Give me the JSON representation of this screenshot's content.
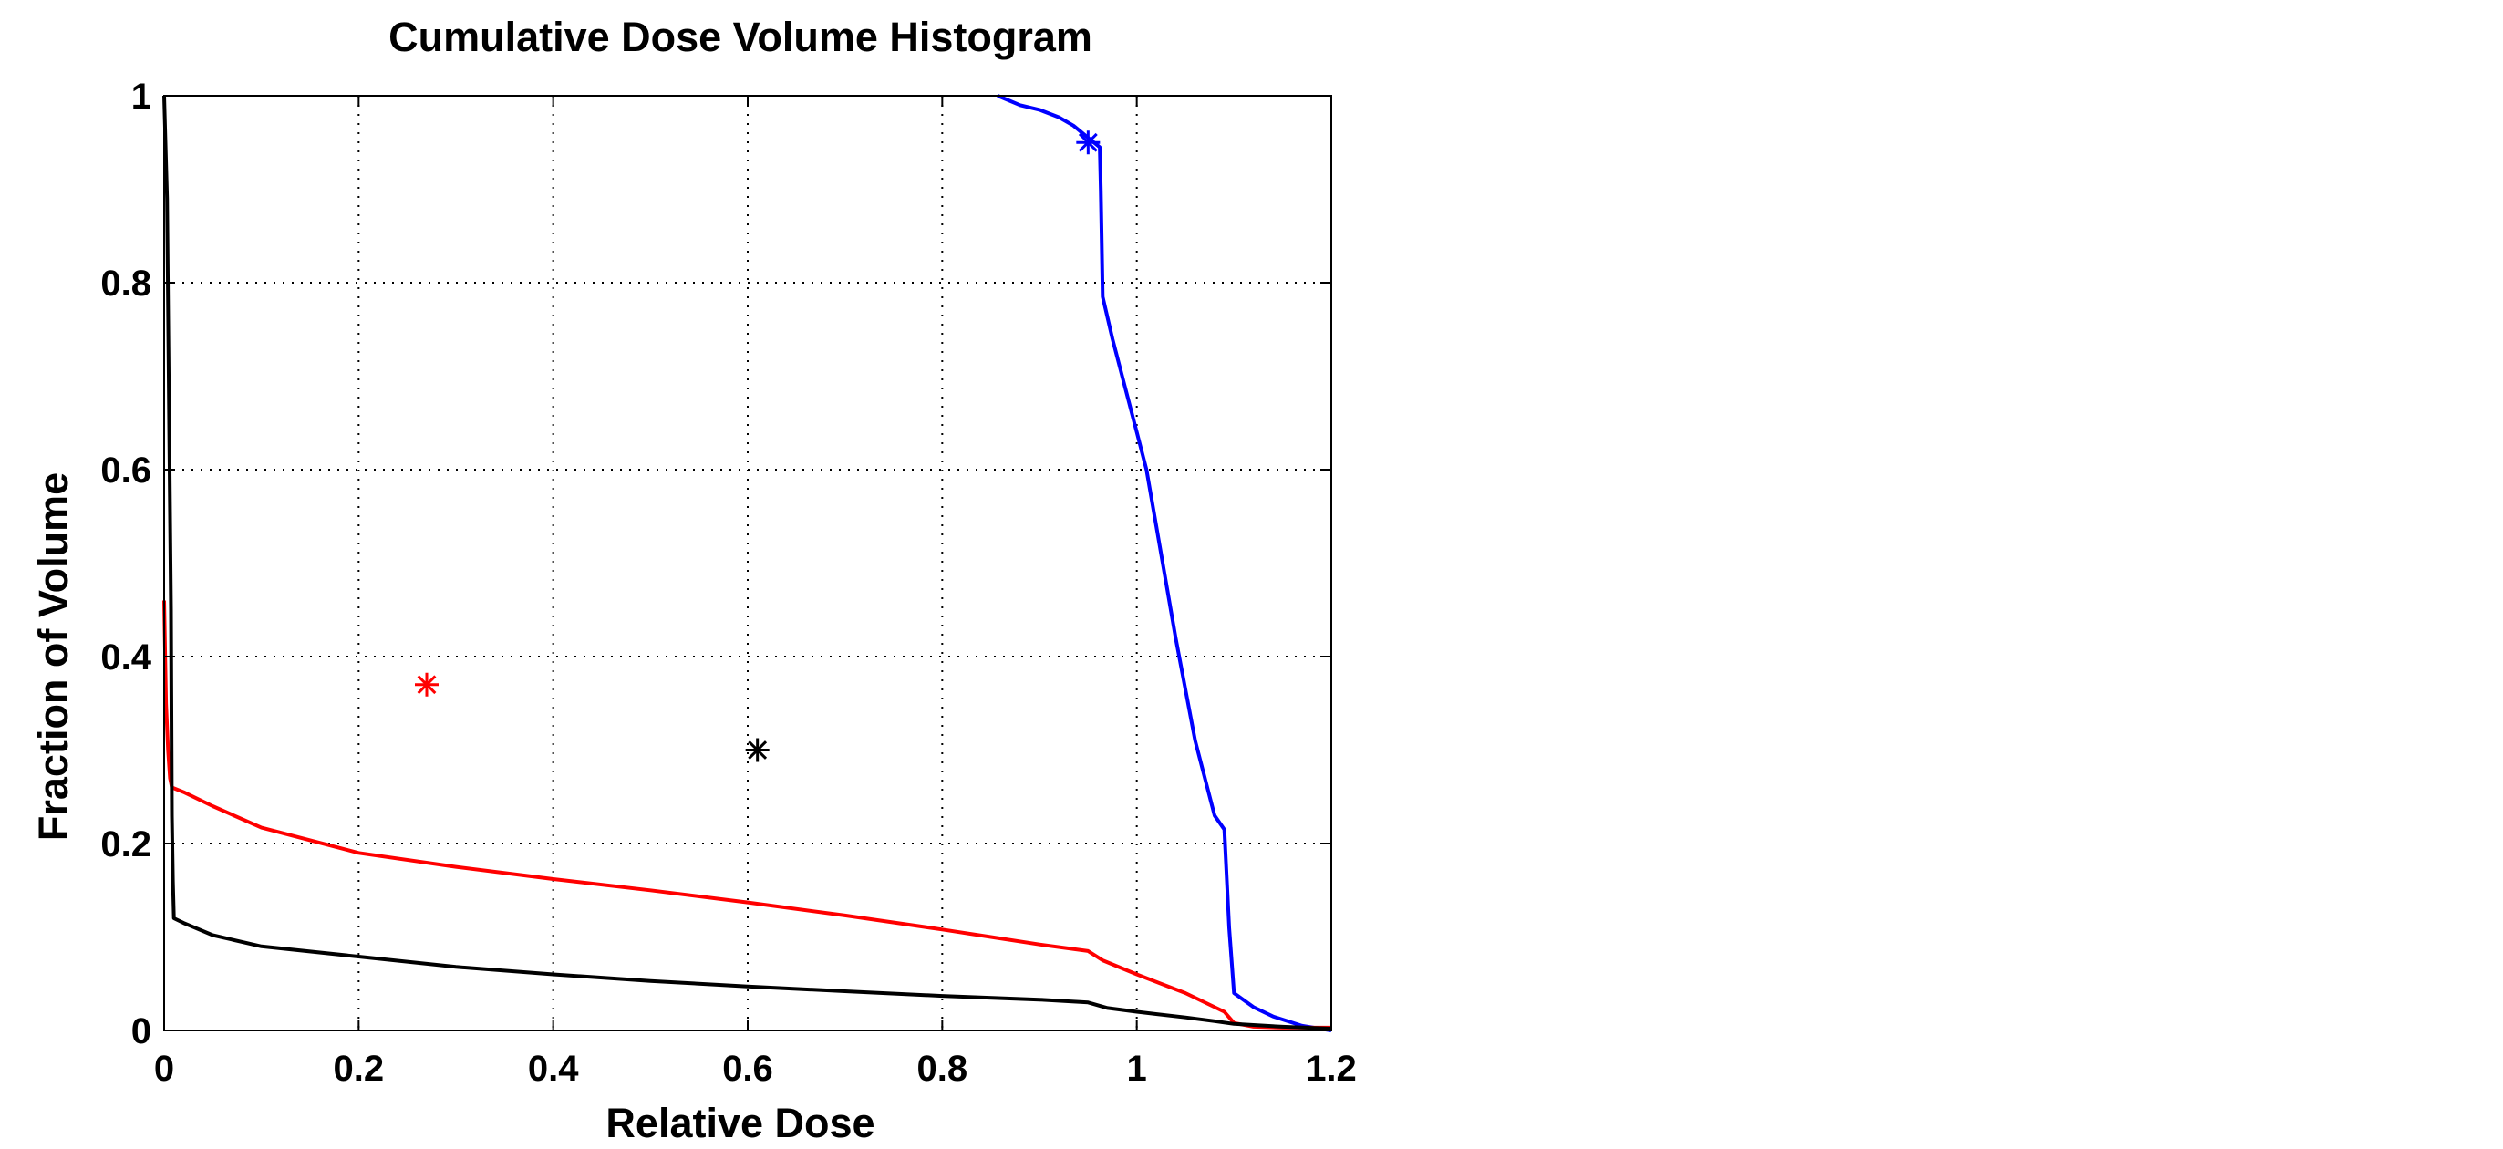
{
  "chart_data": {
    "type": "line",
    "title": "Cumulative Dose Volume Histogram",
    "xlabel": "Relative Dose",
    "ylabel": "Fraction of Volume",
    "xlim": [
      0,
      1.2
    ],
    "ylim": [
      0,
      1
    ],
    "x_ticks": [
      0,
      0.2,
      0.4,
      0.6,
      0.8,
      1,
      1.2
    ],
    "y_ticks": [
      0,
      0.2,
      0.4,
      0.6,
      0.8,
      1
    ],
    "x_tick_labels": [
      "0",
      "0.2",
      "0.4",
      "0.6",
      "0.8",
      "1",
      "1.2"
    ],
    "y_tick_labels": [
      "0",
      "0.2",
      "0.4",
      "0.6",
      "0.8",
      "1"
    ],
    "grid": true,
    "grid_style": "dotted",
    "legend": "none",
    "series": [
      {
        "color": "#0000ff",
        "x": [
          0.857,
          0.88,
          0.9,
          0.92,
          0.935,
          0.95,
          0.962,
          0.963,
          0.965,
          0.975,
          0.99,
          1.0,
          1.01,
          1.02,
          1.04,
          1.06,
          1.08,
          1.09,
          1.095,
          1.1,
          1.12,
          1.14,
          1.17,
          1.2
        ],
        "y": [
          1.0,
          0.99,
          0.985,
          0.977,
          0.968,
          0.955,
          0.945,
          0.9,
          0.785,
          0.74,
          0.68,
          0.64,
          0.6,
          0.54,
          0.42,
          0.31,
          0.23,
          0.215,
          0.11,
          0.04,
          0.025,
          0.015,
          0.005,
          0.0
        ]
      },
      {
        "color": "#ff0000",
        "x": [
          0.0,
          0.002,
          0.004,
          0.006,
          0.008,
          0.02,
          0.05,
          0.1,
          0.2,
          0.3,
          0.4,
          0.5,
          0.6,
          0.7,
          0.8,
          0.85,
          0.9,
          0.95,
          0.965,
          1.0,
          1.05,
          1.09,
          1.1,
          1.12,
          1.15,
          1.2
        ],
        "y": [
          0.46,
          0.35,
          0.3,
          0.27,
          0.26,
          0.255,
          0.24,
          0.217,
          0.19,
          0.175,
          0.162,
          0.15,
          0.137,
          0.123,
          0.108,
          0.1,
          0.092,
          0.085,
          0.075,
          0.06,
          0.04,
          0.02,
          0.008,
          0.004,
          0.003,
          0.003
        ]
      },
      {
        "color": "#000000",
        "x": [
          0.0,
          0.003,
          0.005,
          0.007,
          0.008,
          0.009,
          0.01,
          0.02,
          0.05,
          0.1,
          0.2,
          0.3,
          0.4,
          0.5,
          0.6,
          0.7,
          0.8,
          0.9,
          0.95,
          0.97,
          1.0,
          1.05,
          1.08,
          1.1,
          1.15,
          1.2
        ],
        "y": [
          1.0,
          0.89,
          0.67,
          0.45,
          0.23,
          0.16,
          0.12,
          0.115,
          0.102,
          0.09,
          0.079,
          0.068,
          0.06,
          0.053,
          0.047,
          0.042,
          0.037,
          0.033,
          0.03,
          0.024,
          0.02,
          0.014,
          0.01,
          0.007,
          0.004,
          0.002
        ]
      }
    ],
    "markers": [
      {
        "x": 0.95,
        "y": 0.95,
        "symbol": "*",
        "color": "#0000ff"
      },
      {
        "x": 0.27,
        "y": 0.37,
        "symbol": "*",
        "color": "#ff0000"
      },
      {
        "x": 0.61,
        "y": 0.3,
        "symbol": "*",
        "color": "#000000"
      }
    ]
  }
}
